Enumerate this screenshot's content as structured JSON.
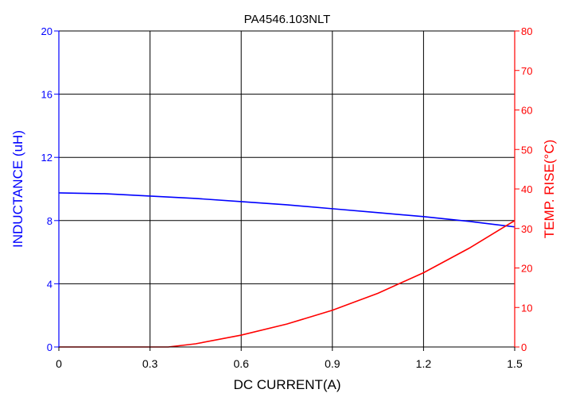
{
  "chart_data": {
    "type": "line",
    "title": "PA4546.103NLT",
    "xlabel": "DC CURRENT(A)",
    "ylabel_left": "INDUCTANCE (uH)",
    "ylabel_right": "TEMP. RISE(°C)",
    "xlim": [
      0,
      1.5
    ],
    "ylim_left": [
      0,
      20
    ],
    "ylim_right": [
      0,
      80
    ],
    "x_ticks": [
      "0",
      "0.3",
      "0.6",
      "0.9",
      "1.2",
      "1.5"
    ],
    "y_left_ticks": [
      "0",
      "4",
      "8",
      "12",
      "16",
      "20"
    ],
    "y_right_ticks": [
      "0",
      "10",
      "20",
      "30",
      "40",
      "50",
      "60",
      "70",
      "80"
    ],
    "grid": true,
    "colors": {
      "left_axis": "#0000ff",
      "right_axis": "#ff0000",
      "grid": "#000000"
    },
    "series": [
      {
        "axis": "left",
        "color": "#0000ff",
        "x": [
          0,
          0.15,
          0.3,
          0.45,
          0.6,
          0.75,
          0.9,
          1.05,
          1.2,
          1.35,
          1.5
        ],
        "y": [
          9.75,
          9.7,
          9.55,
          9.4,
          9.2,
          9.0,
          8.75,
          8.5,
          8.25,
          7.95,
          7.6
        ]
      },
      {
        "axis": "right",
        "color": "#ff0000",
        "x": [
          0,
          0.1,
          0.2,
          0.3,
          0.36,
          0.45,
          0.6,
          0.75,
          0.9,
          1.05,
          1.2,
          1.35,
          1.5
        ],
        "y": [
          0,
          0,
          0,
          0,
          0,
          0.8,
          3.0,
          5.8,
          9.3,
          13.6,
          18.8,
          25.0,
          32.0
        ]
      }
    ]
  }
}
